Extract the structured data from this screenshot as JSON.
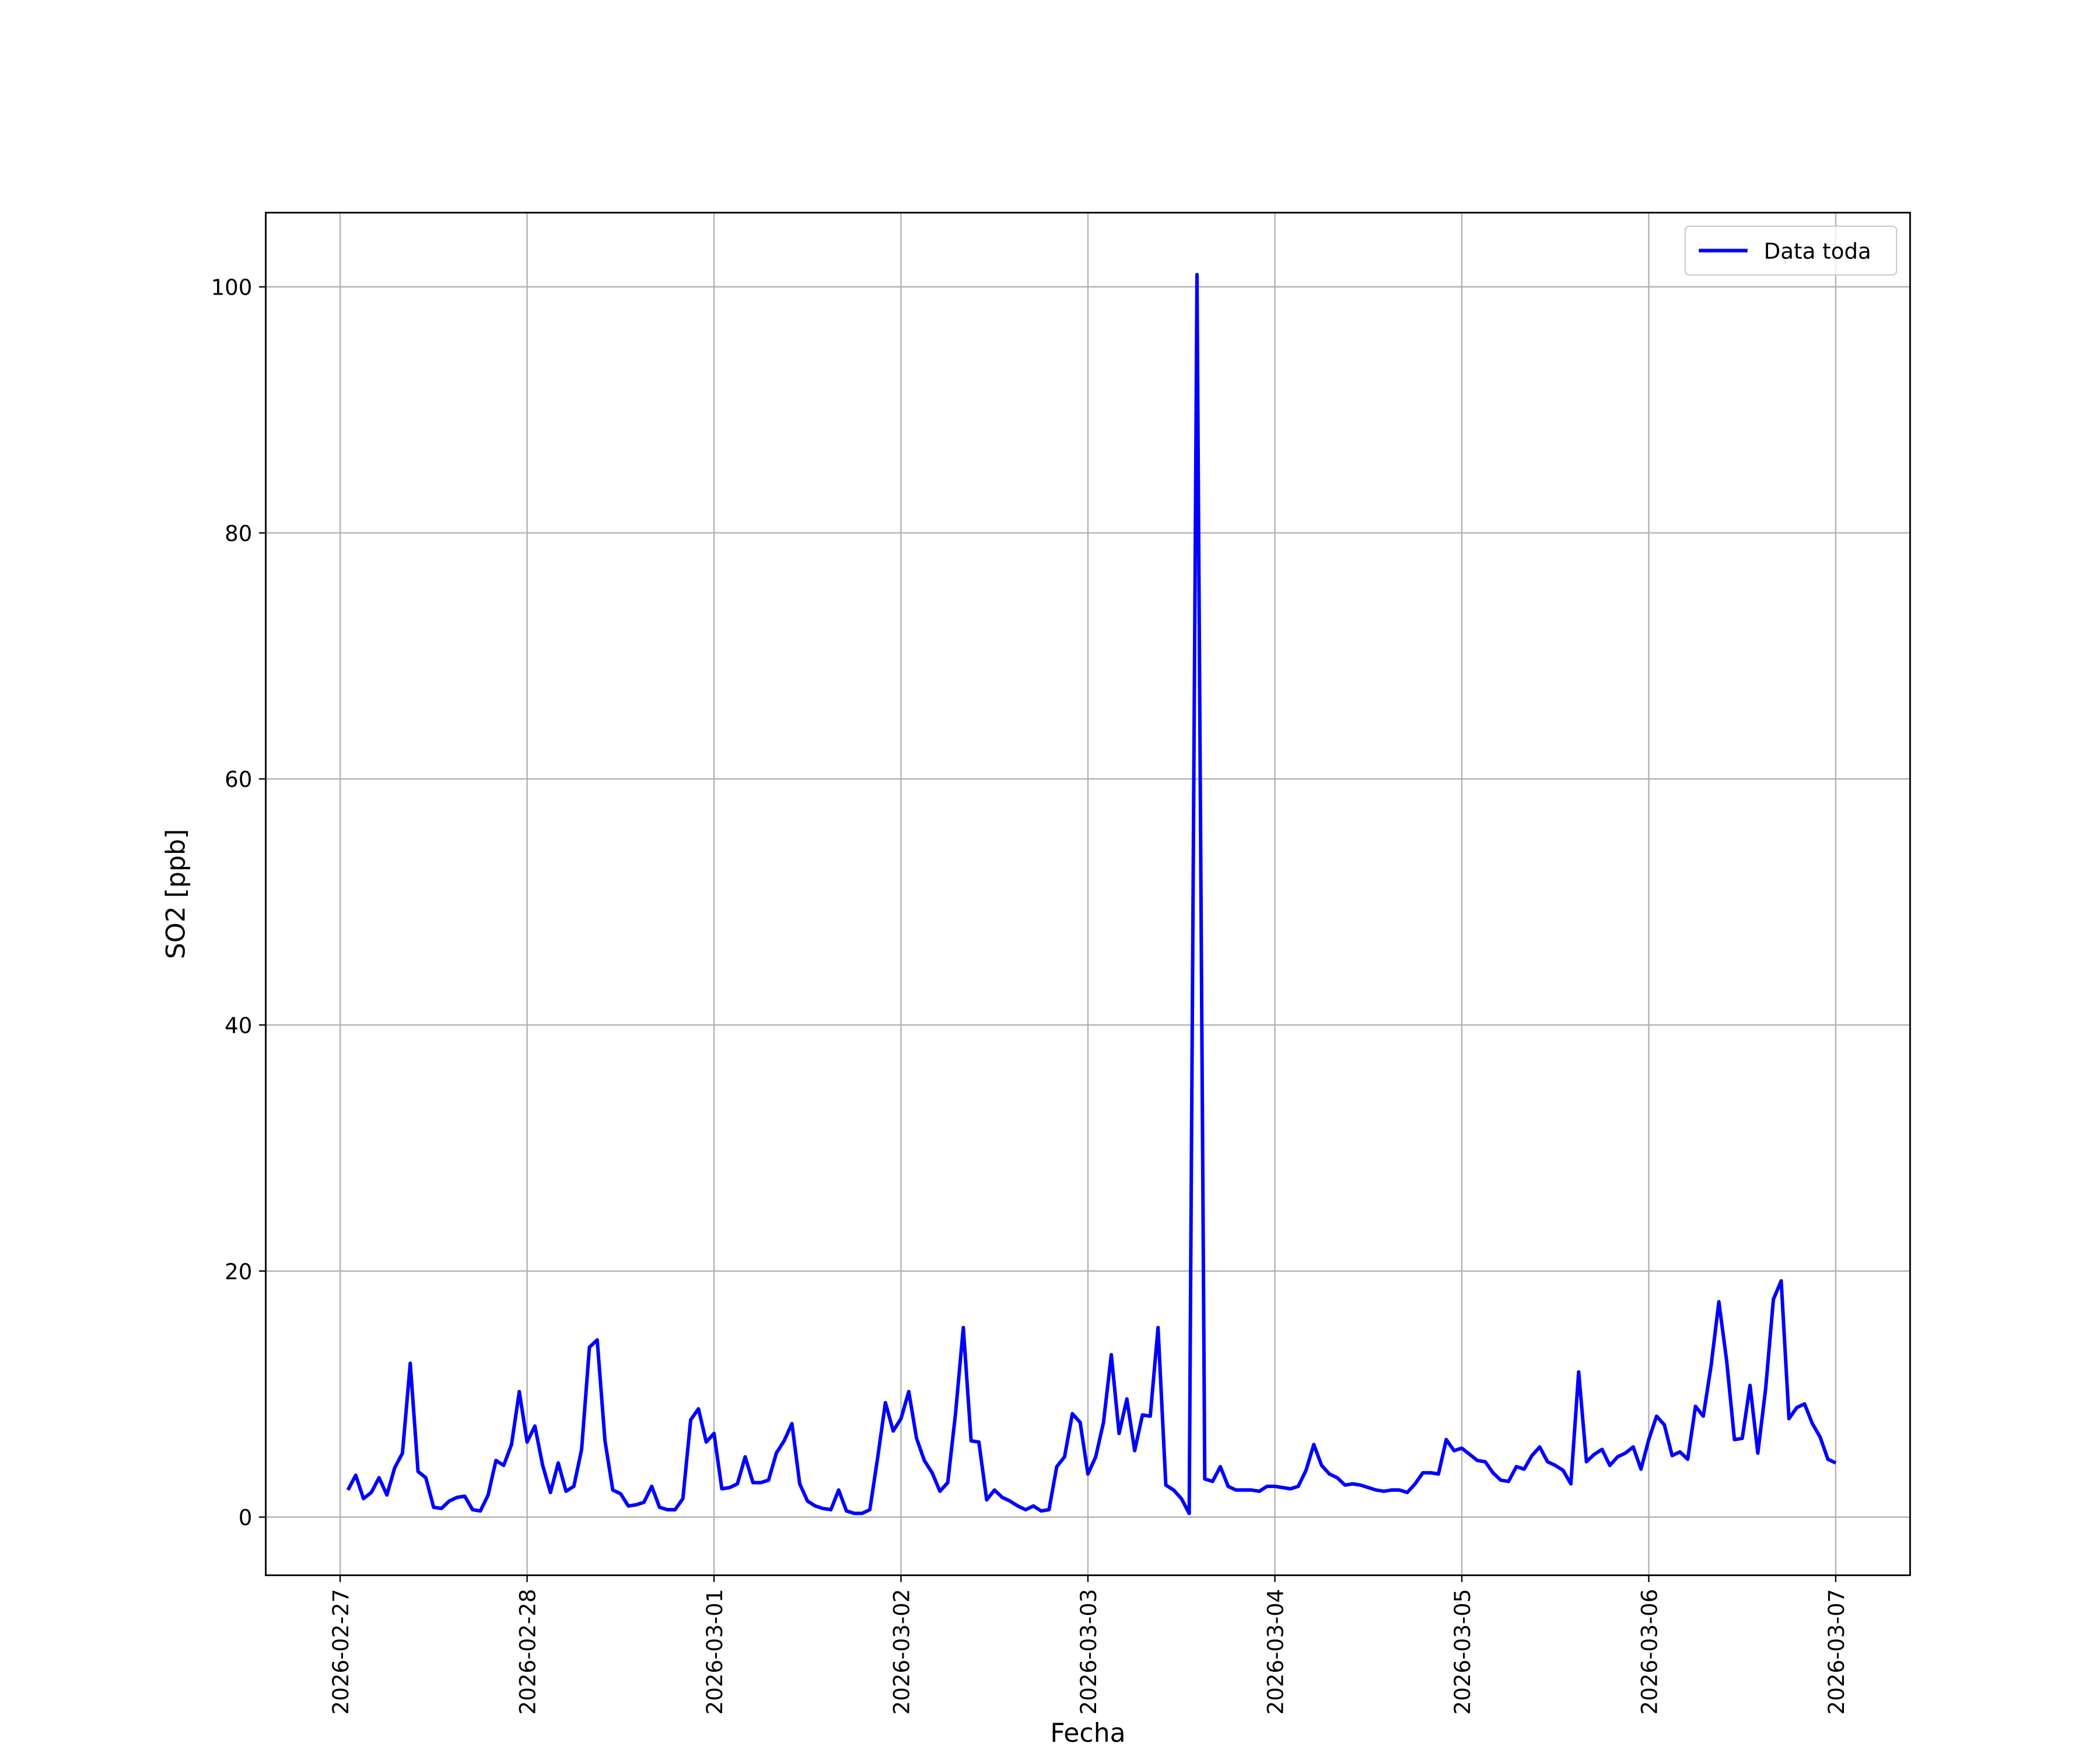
{
  "chart_data": {
    "type": "line",
    "x_label": "Fecha",
    "y_label": "SO2 [ppb]",
    "x": [
      "2026-02-27 01:00",
      "2026-02-27 02:00",
      "2026-02-27 03:00",
      "2026-02-27 04:00",
      "2026-02-27 05:00",
      "2026-02-27 06:00",
      "2026-02-27 07:00",
      "2026-02-27 08:00",
      "2026-02-27 09:00",
      "2026-02-27 10:00",
      "2026-02-27 11:00",
      "2026-02-27 12:00",
      "2026-02-27 13:00",
      "2026-02-27 14:00",
      "2026-02-27 15:00",
      "2026-02-27 16:00",
      "2026-02-27 17:00",
      "2026-02-27 18:00",
      "2026-02-27 19:00",
      "2026-02-27 20:00",
      "2026-02-27 21:00",
      "2026-02-27 22:00",
      "2026-02-27 23:00",
      "2026-02-28 00:00",
      "2026-02-28 01:00",
      "2026-02-28 02:00",
      "2026-02-28 03:00",
      "2026-02-28 04:00",
      "2026-02-28 05:00",
      "2026-02-28 06:00",
      "2026-02-28 07:00",
      "2026-02-28 08:00",
      "2026-02-28 09:00",
      "2026-02-28 10:00",
      "2026-02-28 11:00",
      "2026-02-28 12:00",
      "2026-02-28 13:00",
      "2026-02-28 14:00",
      "2026-02-28 15:00",
      "2026-02-28 16:00",
      "2026-02-28 17:00",
      "2026-02-28 18:00",
      "2026-02-28 19:00",
      "2026-02-28 20:00",
      "2026-02-28 21:00",
      "2026-02-28 22:00",
      "2026-02-28 23:00",
      "2026-03-01 00:00",
      "2026-03-01 01:00",
      "2026-03-01 02:00",
      "2026-03-01 03:00",
      "2026-03-01 04:00",
      "2026-03-01 05:00",
      "2026-03-01 06:00",
      "2026-03-01 07:00",
      "2026-03-01 08:00",
      "2026-03-01 09:00",
      "2026-03-01 10:00",
      "2026-03-01 11:00",
      "2026-03-01 12:00",
      "2026-03-01 13:00",
      "2026-03-01 14:00",
      "2026-03-01 15:00",
      "2026-03-01 16:00",
      "2026-03-01 17:00",
      "2026-03-01 18:00",
      "2026-03-01 19:00",
      "2026-03-01 20:00",
      "2026-03-01 21:00",
      "2026-03-01 22:00",
      "2026-03-01 23:00",
      "2026-03-02 00:00",
      "2026-03-02 01:00",
      "2026-03-02 02:00",
      "2026-03-02 03:00",
      "2026-03-02 04:00",
      "2026-03-02 05:00",
      "2026-03-02 06:00",
      "2026-03-02 07:00",
      "2026-03-02 08:00",
      "2026-03-02 09:00",
      "2026-03-02 10:00",
      "2026-03-02 11:00",
      "2026-03-02 12:00",
      "2026-03-02 13:00",
      "2026-03-02 14:00",
      "2026-03-02 15:00",
      "2026-03-02 16:00",
      "2026-03-02 17:00",
      "2026-03-02 18:00",
      "2026-03-02 19:00",
      "2026-03-02 20:00",
      "2026-03-02 21:00",
      "2026-03-02 22:00",
      "2026-03-02 23:00",
      "2026-03-03 00:00",
      "2026-03-03 01:00",
      "2026-03-03 02:00",
      "2026-03-03 03:00",
      "2026-03-03 04:00",
      "2026-03-03 05:00",
      "2026-03-03 06:00",
      "2026-03-03 07:00",
      "2026-03-03 08:00",
      "2026-03-03 09:00",
      "2026-03-03 10:00",
      "2026-03-03 11:00",
      "2026-03-03 12:00",
      "2026-03-03 13:00",
      "2026-03-03 14:00",
      "2026-03-03 15:00",
      "2026-03-03 16:00",
      "2026-03-03 17:00",
      "2026-03-03 18:00",
      "2026-03-03 19:00",
      "2026-03-03 20:00",
      "2026-03-03 21:00",
      "2026-03-03 22:00",
      "2026-03-03 23:00",
      "2026-03-04 00:00",
      "2026-03-04 01:00",
      "2026-03-04 02:00",
      "2026-03-04 03:00",
      "2026-03-04 04:00",
      "2026-03-04 05:00",
      "2026-03-04 06:00",
      "2026-03-04 07:00",
      "2026-03-04 08:00",
      "2026-03-04 09:00",
      "2026-03-04 10:00",
      "2026-03-04 11:00",
      "2026-03-04 12:00",
      "2026-03-04 13:00",
      "2026-03-04 14:00",
      "2026-03-04 15:00",
      "2026-03-04 16:00",
      "2026-03-04 17:00",
      "2026-03-04 18:00",
      "2026-03-04 19:00",
      "2026-03-04 20:00",
      "2026-03-04 21:00",
      "2026-03-04 22:00",
      "2026-03-04 23:00",
      "2026-03-05 00:00",
      "2026-03-05 01:00",
      "2026-03-05 02:00",
      "2026-03-05 03:00",
      "2026-03-05 04:00",
      "2026-03-05 05:00",
      "2026-03-05 06:00",
      "2026-03-05 07:00",
      "2026-03-05 08:00",
      "2026-03-05 09:00",
      "2026-03-05 10:00",
      "2026-03-05 11:00",
      "2026-03-05 12:00",
      "2026-03-05 13:00",
      "2026-03-05 14:00",
      "2026-03-05 15:00",
      "2026-03-05 16:00",
      "2026-03-05 17:00",
      "2026-03-05 18:00",
      "2026-03-05 19:00",
      "2026-03-05 20:00",
      "2026-03-05 21:00",
      "2026-03-05 22:00",
      "2026-03-05 23:00",
      "2026-03-06 00:00",
      "2026-03-06 01:00",
      "2026-03-06 02:00",
      "2026-03-06 03:00",
      "2026-03-06 04:00",
      "2026-03-06 05:00",
      "2026-03-06 06:00",
      "2026-03-06 07:00",
      "2026-03-06 08:00",
      "2026-03-06 09:00",
      "2026-03-06 10:00",
      "2026-03-06 11:00",
      "2026-03-06 12:00",
      "2026-03-06 13:00",
      "2026-03-06 14:00",
      "2026-03-06 15:00",
      "2026-03-06 16:00",
      "2026-03-06 17:00",
      "2026-03-06 18:00",
      "2026-03-06 19:00",
      "2026-03-06 20:00",
      "2026-03-06 21:00",
      "2026-03-06 22:00",
      "2026-03-06 23:00",
      "2026-03-07 00:00"
    ],
    "series": [
      {
        "name": "Data toda",
        "color": "#0000ff",
        "values": [
          2.2,
          3.4,
          1.5,
          2.0,
          3.2,
          1.8,
          4.0,
          5.2,
          12.5,
          3.7,
          3.2,
          0.8,
          0.7,
          1.3,
          1.6,
          1.7,
          0.6,
          0.5,
          1.8,
          4.6,
          4.2,
          5.9,
          10.2,
          6.1,
          7.4,
          4.2,
          2.0,
          4.4,
          2.1,
          2.5,
          5.5,
          13.8,
          14.4,
          6.2,
          2.2,
          1.9,
          0.9,
          1.0,
          1.2,
          2.5,
          0.8,
          0.6,
          0.6,
          1.5,
          7.9,
          8.8,
          6.1,
          6.8,
          2.3,
          2.4,
          2.7,
          4.9,
          2.8,
          2.8,
          3.0,
          5.2,
          6.2,
          7.6,
          2.7,
          1.3,
          0.9,
          0.7,
          0.6,
          2.2,
          0.5,
          0.3,
          0.3,
          0.6,
          4.8,
          9.3,
          7.0,
          8.0,
          10.2,
          6.4,
          4.6,
          3.6,
          2.1,
          2.8,
          8.4,
          15.4,
          6.2,
          6.1,
          1.4,
          2.2,
          1.6,
          1.3,
          0.9,
          0.6,
          0.9,
          0.5,
          0.6,
          4.1,
          4.9,
          8.4,
          7.7,
          3.5,
          4.9,
          7.7,
          13.2,
          6.8,
          9.6,
          5.4,
          8.3,
          8.2,
          15.4,
          2.6,
          2.2,
          1.5,
          0.3,
          101,
          3.1,
          2.9,
          4.1,
          2.5,
          2.2,
          2.2,
          2.2,
          2.1,
          2.5,
          2.5,
          2.4,
          2.3,
          2.5,
          3.8,
          5.9,
          4.2,
          3.5,
          3.2,
          2.6,
          2.7,
          2.6,
          2.4,
          2.2,
          2.1,
          2.2,
          2.2,
          2.0,
          2.7,
          3.6,
          3.6,
          3.5,
          6.3,
          5.4,
          5.6,
          5.1,
          4.6,
          4.5,
          3.6,
          3.0,
          2.9,
          4.1,
          3.9,
          5.0,
          5.7,
          4.5,
          4.2,
          3.8,
          2.7,
          11.8,
          4.5,
          5.1,
          5.5,
          4.2,
          4.9,
          5.2,
          5.7,
          3.9,
          6.3,
          8.2,
          7.5,
          5.0,
          5.3,
          4.7,
          9.0,
          8.2,
          12.3,
          17.5,
          12.7,
          6.3,
          6.4,
          10.7,
          5.2,
          10.4,
          17.7,
          19.2,
          8.0,
          8.9,
          9.2,
          7.6,
          6.5,
          4.7,
          4.4
        ]
      }
    ],
    "xlim": [
      "2026-02-26 14:27",
      "2026-03-07 09:33"
    ],
    "xticks": [
      "2026-02-27",
      "2026-02-28",
      "2026-03-01",
      "2026-03-02",
      "2026-03-03",
      "2026-03-04",
      "2026-03-05",
      "2026-03-06",
      "2026-03-07"
    ],
    "ylim": [
      -4.73,
      106.03
    ],
    "yticks": [
      0,
      20,
      40,
      60,
      80,
      100
    ],
    "grid": true,
    "legend": "upper right"
  }
}
